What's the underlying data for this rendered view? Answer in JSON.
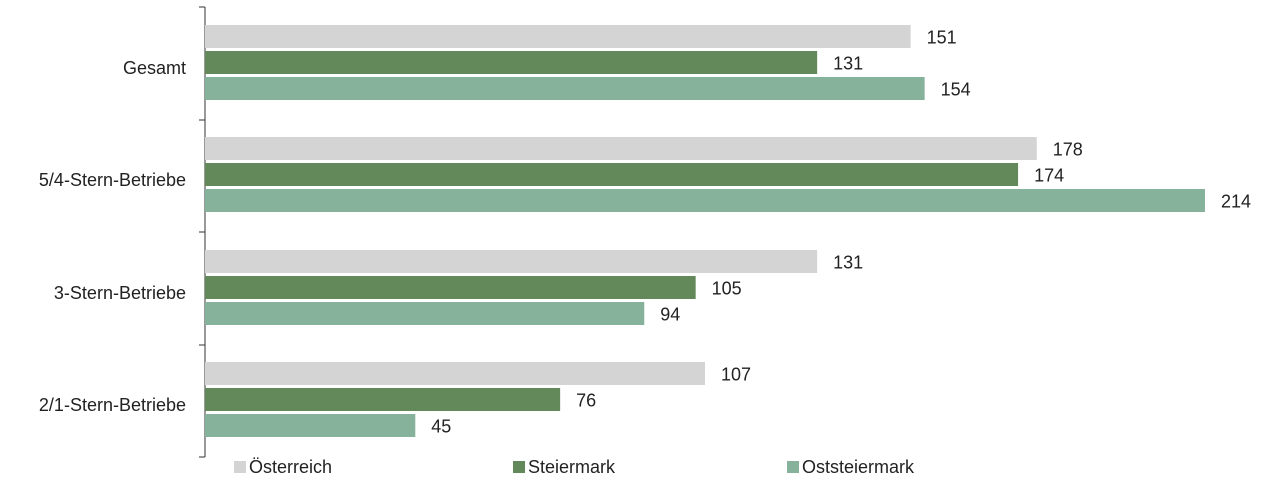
{
  "chart_data": {
    "type": "bar",
    "orientation": "horizontal",
    "title": "",
    "categories": [
      "Gesamt",
      "5/4-Stern-Betriebe",
      "3-Stern-Betriebe",
      "2/1-Stern-Betriebe"
    ],
    "series": [
      {
        "name": "Österreich",
        "values": [
          151,
          178,
          131,
          107
        ],
        "color": "#d4d4d4"
      },
      {
        "name": "Steiermark",
        "values": [
          131,
          174,
          105,
          76
        ],
        "color": "#63885a"
      },
      {
        "name": "Oststeiermark",
        "values": [
          154,
          214,
          94,
          45
        ],
        "color": "#86b29c"
      }
    ],
    "xlim": [
      0,
      214
    ],
    "grid": false,
    "data_labels": true,
    "legend_position": "bottom"
  }
}
